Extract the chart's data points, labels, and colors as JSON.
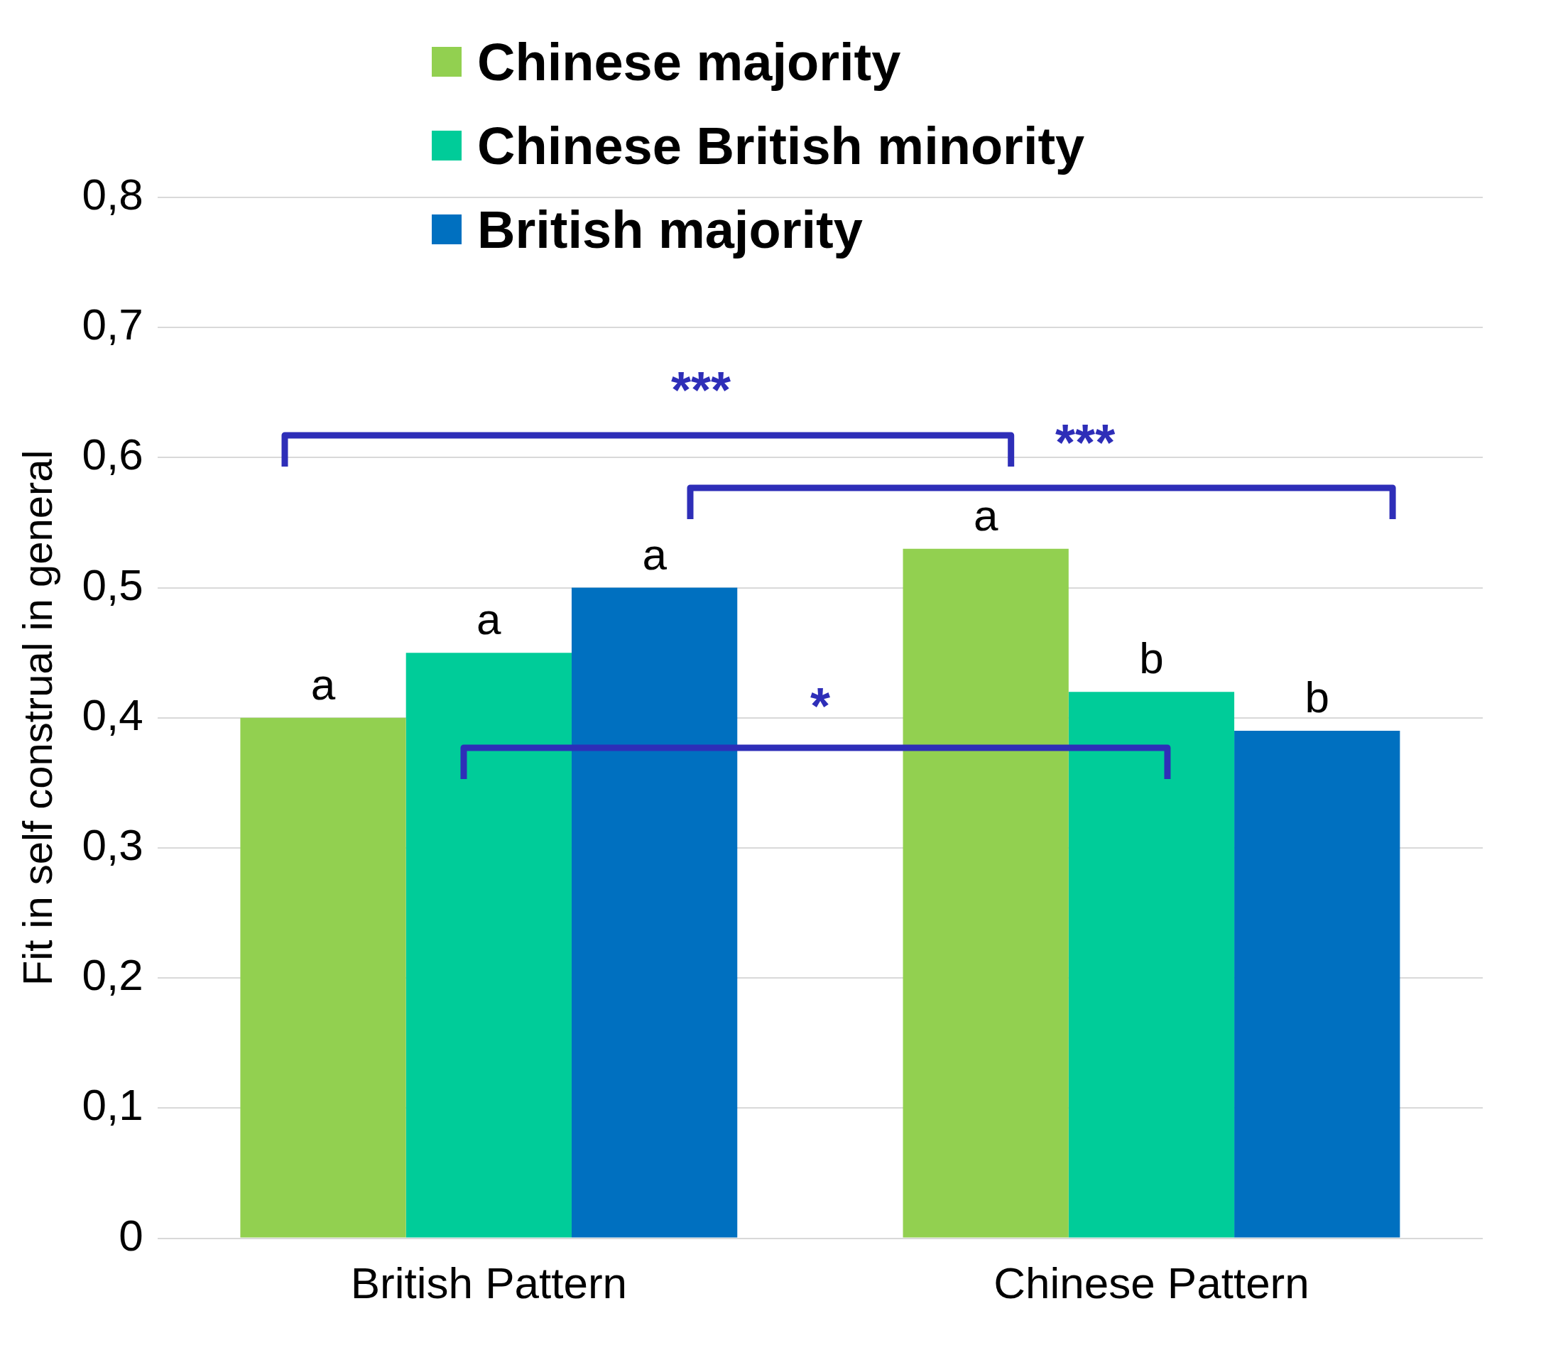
{
  "chart_data": {
    "type": "bar",
    "ylabel": "Fit in self construal in general",
    "categories": [
      "British Pattern",
      "Chinese Pattern"
    ],
    "series": [
      {
        "name": "Chinese majority",
        "color": "#92d050",
        "values": [
          0.4,
          0.53
        ]
      },
      {
        "name": "Chinese British minority",
        "color": "#00cc99",
        "values": [
          0.45,
          0.42
        ]
      },
      {
        "name": "British majority",
        "color": "#0070c0",
        "values": [
          0.5,
          0.39
        ]
      }
    ],
    "ylim": [
      0,
      0.8
    ],
    "yticks": [
      {
        "value": 0,
        "label": "0"
      },
      {
        "value": 0.1,
        "label": "0,1"
      },
      {
        "value": 0.2,
        "label": "0,2"
      },
      {
        "value": 0.3,
        "label": "0,3"
      },
      {
        "value": 0.4,
        "label": "0,4"
      },
      {
        "value": 0.5,
        "label": "0,5"
      },
      {
        "value": 0.6,
        "label": "0,6"
      },
      {
        "value": 0.7,
        "label": "0,7"
      },
      {
        "value": 0.8,
        "label": "0,8"
      }
    ],
    "grid": "y",
    "legend": "top",
    "annotations": [
      "a",
      "a",
      "a",
      "a",
      "b",
      "b",
      "***",
      "***",
      "*"
    ]
  }
}
